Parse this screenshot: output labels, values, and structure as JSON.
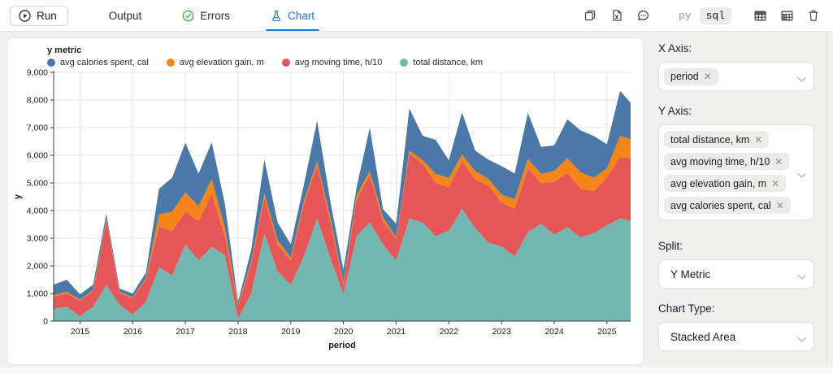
{
  "toolbar": {
    "run_label": "Run",
    "tabs": [
      {
        "label": "Output",
        "active": false
      },
      {
        "label": "Errors",
        "active": false,
        "icon": "check-circle"
      },
      {
        "label": "Chart",
        "active": true,
        "icon": "flask"
      }
    ],
    "lang_toggle": {
      "py": "py",
      "sql": "sql",
      "selected": "sql"
    },
    "action_icons": [
      "copy",
      "export-file",
      "comments",
      "table-plain",
      "table-header",
      "trash"
    ]
  },
  "colors": {
    "accent_blue": "#1a77d2",
    "success_green": "#3cb54a",
    "series_blue": "#4c78a8",
    "series_orange": "#f58518",
    "series_red": "#e45756",
    "series_teal": "#72b7b2"
  },
  "chart_panel": {
    "legend": {
      "title": "y metric",
      "items": [
        {
          "label": "avg calories spent, cal",
          "color": "#4c78a8"
        },
        {
          "label": "avg elevation gain, m",
          "color": "#f58518"
        },
        {
          "label": "avg moving time, h/10",
          "color": "#e45756"
        },
        {
          "label": "total distance, km",
          "color": "#72b7b2"
        }
      ]
    }
  },
  "chart_data": {
    "type": "area",
    "stacked": true,
    "title": "y metric",
    "xlabel": "period",
    "ylabel": "y",
    "ylim": [
      0,
      9000
    ],
    "yticks": [
      0,
      1000,
      2000,
      3000,
      4000,
      5000,
      6000,
      7000,
      8000,
      9000
    ],
    "xticks": [
      2015,
      2016,
      2017,
      2018,
      2019,
      2020,
      2021,
      2022,
      2023,
      2024,
      2025
    ],
    "grid": true,
    "legend_position": "top-left",
    "x": [
      2014.5,
      2014.75,
      2015,
      2015.25,
      2015.5,
      2015.75,
      2016,
      2016.25,
      2016.5,
      2016.75,
      2017,
      2017.25,
      2017.5,
      2017.75,
      2018,
      2018.25,
      2018.5,
      2018.75,
      2019,
      2019.25,
      2019.5,
      2019.75,
      2020,
      2020.25,
      2020.5,
      2020.75,
      2021,
      2021.25,
      2021.5,
      2021.75,
      2022,
      2022.25,
      2022.5,
      2022.75,
      2023,
      2023.25,
      2023.5,
      2023.75,
      2024,
      2024.25,
      2024.5,
      2024.75,
      2025,
      2025.25,
      2025.45
    ],
    "series": [
      {
        "name": "total distance, km",
        "color": "#72b7b2",
        "values": [
          450,
          520,
          180,
          520,
          1310,
          600,
          240,
          700,
          1950,
          1660,
          2780,
          2200,
          2690,
          2390,
          90,
          1000,
          3180,
          1800,
          1310,
          2350,
          3720,
          2290,
          970,
          3080,
          3570,
          2780,
          2200,
          3720,
          3570,
          3080,
          3270,
          4060,
          3370,
          2840,
          2700,
          2350,
          3230,
          3520,
          3130,
          3400,
          3030,
          3180,
          3470,
          3720,
          3620
        ]
      },
      {
        "name": "avg moving time, h/10",
        "color": "#e45756",
        "values": [
          430,
          480,
          560,
          560,
          2350,
          430,
          590,
          800,
          1470,
          1600,
          1180,
          1420,
          1910,
          690,
          450,
          1100,
          1280,
          980,
          880,
          1870,
          1910,
          1320,
          340,
          1320,
          1710,
          830,
          780,
          2350,
          2110,
          1910,
          1570,
          1720,
          1770,
          2060,
          1590,
          1720,
          2300,
          1470,
          1910,
          1960,
          1770,
          1520,
          1720,
          2210,
          2280
        ]
      },
      {
        "name": "avg elevation gain, m",
        "color": "#f58518",
        "values": [
          60,
          70,
          40,
          40,
          50,
          40,
          30,
          60,
          440,
          700,
          700,
          540,
          540,
          290,
          60,
          90,
          150,
          150,
          100,
          130,
          150,
          150,
          100,
          150,
          150,
          150,
          50,
          100,
          150,
          340,
          340,
          250,
          290,
          250,
          290,
          340,
          340,
          340,
          390,
          540,
          590,
          490,
          340,
          770,
          700
        ]
      },
      {
        "name": "avg calories spent, cal",
        "color": "#4c78a8",
        "values": [
          380,
          430,
          190,
          200,
          180,
          110,
          140,
          190,
          930,
          1230,
          1800,
          1170,
          1330,
          880,
          100,
          400,
          1230,
          640,
          490,
          590,
          1470,
          590,
          440,
          290,
          1570,
          290,
          490,
          1520,
          880,
          1230,
          640,
          1520,
          740,
          690,
          1030,
          930,
          1670,
          970,
          930,
          1400,
          1510,
          1510,
          870,
          1630,
          1300
        ]
      }
    ]
  },
  "sidebar": {
    "x_axis": {
      "label": "X Axis:",
      "tags": [
        "period"
      ]
    },
    "y_axis": {
      "label": "Y Axis:",
      "tags": [
        "total distance, km",
        "avg moving time, h/10",
        "avg elevation gain, m",
        "avg calories spent, cal"
      ]
    },
    "split": {
      "label": "Split:",
      "value": "Y Metric"
    },
    "chart_type": {
      "label": "Chart Type:",
      "value": "Stacked Area"
    }
  }
}
